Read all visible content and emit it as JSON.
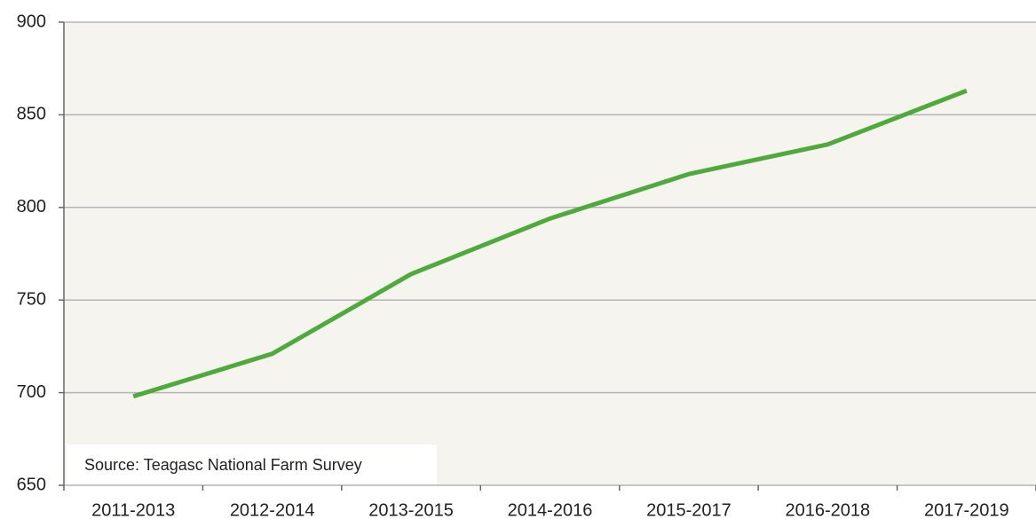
{
  "chart_data": {
    "type": "line",
    "categories": [
      "2011-2013",
      "2012-2014",
      "2013-2015",
      "2014-2016",
      "2015-2017",
      "2016-2018",
      "2017-2019"
    ],
    "series": [
      {
        "name": "",
        "color": "#4eaa3c",
        "values": [
          698,
          721,
          764,
          794,
          818,
          834,
          863
        ]
      }
    ],
    "ylim": [
      650,
      900
    ],
    "yticks": [
      650,
      700,
      750,
      800,
      850,
      900
    ],
    "grid": true,
    "annotation": "Source: Teagasc National Farm Survey"
  }
}
